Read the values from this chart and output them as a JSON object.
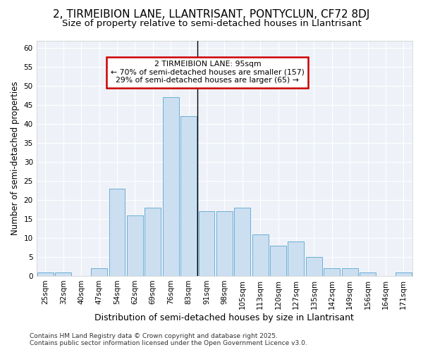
{
  "title1": "2, TIRMEIBION LANE, LLANTRISANT, PONTYCLUN, CF72 8DJ",
  "title2": "Size of property relative to semi-detached houses in Llantrisant",
  "xlabel": "Distribution of semi-detached houses by size in Llantrisant",
  "ylabel": "Number of semi-detached properties",
  "categories": [
    "25sqm",
    "32sqm",
    "40sqm",
    "47sqm",
    "54sqm",
    "62sqm",
    "69sqm",
    "76sqm",
    "83sqm",
    "91sqm",
    "98sqm",
    "105sqm",
    "113sqm",
    "120sqm",
    "127sqm",
    "135sqm",
    "142sqm",
    "149sqm",
    "156sqm",
    "164sqm",
    "171sqm"
  ],
  "values": [
    1,
    1,
    0,
    2,
    23,
    16,
    18,
    47,
    42,
    17,
    17,
    18,
    11,
    8,
    9,
    5,
    2,
    2,
    1,
    0,
    1
  ],
  "bar_color": "#ccdff0",
  "bar_edge_color": "#6aaed6",
  "vline_after_index": 9,
  "ylim": [
    0,
    62
  ],
  "yticks": [
    0,
    5,
    10,
    15,
    20,
    25,
    30,
    35,
    40,
    45,
    50,
    55,
    60
  ],
  "annotation_title": "2 TIRMEIBION LANE: 95sqm",
  "annotation_line1": "← 70% of semi-detached houses are smaller (157)",
  "annotation_line2": "29% of semi-detached houses are larger (65) →",
  "annotation_box_facecolor": "#ffffff",
  "annotation_box_edgecolor": "#cc0000",
  "footer_line1": "Contains HM Land Registry data © Crown copyright and database right 2025.",
  "footer_line2": "Contains public sector information licensed under the Open Government Licence v3.0.",
  "background_color": "#ffffff",
  "plot_bg_color": "#eef2f8",
  "grid_color": "#ffffff",
  "title1_fontsize": 11,
  "title2_fontsize": 9.5,
  "ylabel_fontsize": 8.5,
  "xlabel_fontsize": 9,
  "tick_fontsize": 7.5,
  "footer_fontsize": 6.5
}
